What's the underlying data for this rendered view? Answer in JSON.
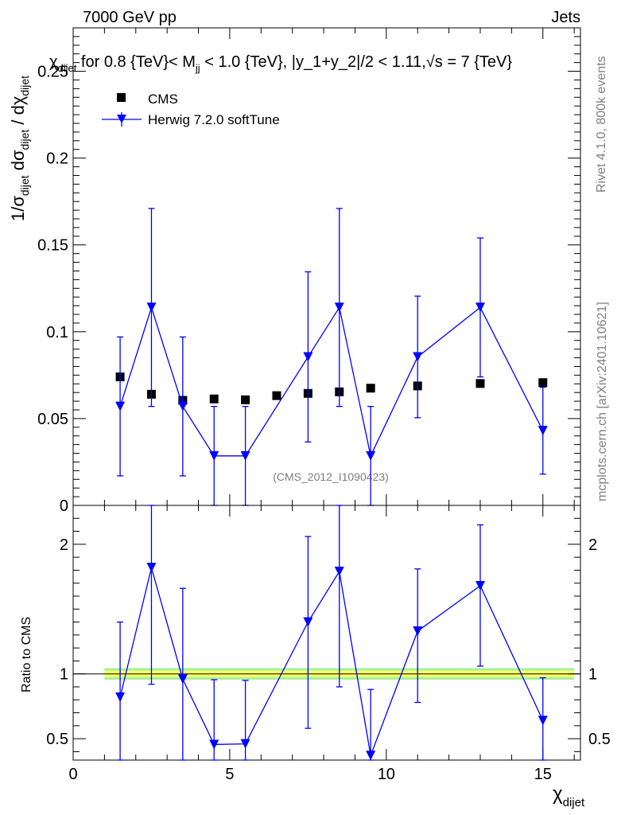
{
  "header": {
    "left": "7000 GeV pp",
    "right": "Jets"
  },
  "side_labels": {
    "rivet": "Rivet 4.1.0,  800k events",
    "mcplots": "mcplots.cern.ch [arXiv:2401.10621]"
  },
  "chart_data": {
    "type": "scatter",
    "title": "χdijet for 0.8 {TeV}< Mjj < 1.0 {TeV}, |y_1+y_2|/2 < 1.11,√s = 7 {TeV}",
    "title_parts": {
      "chi": "χ",
      "chi_sub": "dijet",
      "text1": " for 0.8 {TeV}< M",
      "m_sub": "jj",
      "text2": " < 1.0 {TeV}, |y_1+y_2|/2 < 1.11,",
      "sqrt": "√",
      "text3": "s = 7 {TeV}"
    },
    "watermark": "(CMS_2012_I1090423)",
    "xlabel": "χdijet",
    "xlabel_parts": {
      "main": "χ",
      "sub": "dijet"
    },
    "ylabel": "1/σdijet dσdijet / dχdijet",
    "ylabel_parts": {
      "p1": "1/σ",
      "s1": "dijet",
      "p2": " dσ",
      "s2": "dijet",
      "p3": " / dχ",
      "s3": "dijet"
    },
    "xlim": [
      0,
      16.2
    ],
    "ylim": [
      0,
      0.275
    ],
    "x_ticks": [
      0,
      5,
      10,
      15
    ],
    "x_tick_labels": [
      "0",
      "5",
      "10",
      "15"
    ],
    "y_ticks": [
      0,
      0.05,
      0.1,
      0.15,
      0.2,
      0.25
    ],
    "y_tick_labels": [
      "0",
      "0.05",
      "0.1",
      "0.15",
      "0.2",
      "0.25"
    ],
    "legend_position": "top-left",
    "legend": [
      "CMS",
      "Herwig 7.2.0 softTune"
    ],
    "series": [
      {
        "name": "CMS",
        "marker": "square",
        "color": "#000000",
        "x": [
          1.5,
          2.5,
          3.5,
          4.5,
          5.5,
          6.5,
          7.5,
          8.5,
          9.5,
          11,
          13,
          15
        ],
        "y": [
          0.074,
          0.064,
          0.0605,
          0.0613,
          0.0608,
          0.0632,
          0.0645,
          0.0654,
          0.0675,
          0.0688,
          0.0702,
          0.0707
        ]
      },
      {
        "name": "Herwig 7.2.0 softTune",
        "marker": "triangle-down",
        "color": "#0000ff",
        "x": [
          1.5,
          2.5,
          3.5,
          4.5,
          5.5,
          7.5,
          8.5,
          9.5,
          11,
          13,
          15
        ],
        "y": [
          0.057,
          0.114,
          0.057,
          0.0285,
          0.0285,
          0.0855,
          0.114,
          0.0285,
          0.0855,
          0.114,
          0.043
        ],
        "y_err_low": [
          0.04,
          0.057,
          0.04,
          0.0285,
          0.0285,
          0.049,
          0.057,
          0.0285,
          0.035,
          0.04,
          0.025
        ],
        "y_err_high": [
          0.04,
          0.057,
          0.04,
          0.0285,
          0.0285,
          0.049,
          0.057,
          0.0285,
          0.035,
          0.04,
          0.025
        ],
        "x_lo": [
          1,
          2,
          3,
          4,
          5,
          7,
          8,
          9,
          10,
          12,
          14
        ],
        "x_hi": [
          2,
          3,
          4,
          5,
          6,
          8,
          9,
          10,
          12,
          14,
          16
        ]
      }
    ],
    "ratio": {
      "ylabel": "Ratio to CMS",
      "ylim": [
        0.335,
        2.3
      ],
      "y_ticks": [
        0.5,
        1,
        2
      ],
      "y_tick_labels": [
        "0.5",
        "1",
        "2"
      ],
      "band_x": [
        1,
        16
      ],
      "band_inner": [
        0.975,
        1.025
      ],
      "band_outer": [
        0.955,
        1.045
      ],
      "band_colors": {
        "inner": "#ffff66",
        "outer": "#a8f0a0"
      },
      "x": [
        1.5,
        2.5,
        3.5,
        4.5,
        5.5,
        7.5,
        8.5,
        9.5,
        11,
        13,
        15
      ],
      "y": [
        0.82,
        1.82,
        0.96,
        0.455,
        0.46,
        1.4,
        1.79,
        0.37,
        1.33,
        1.68,
        0.64
      ],
      "y_err_low": [
        0.58,
        0.9,
        0.7,
        0.455,
        0.46,
        0.82,
        0.89,
        0.37,
        0.55,
        0.62,
        0.36
      ],
      "y_err_high": [
        0.58,
        0.9,
        0.7,
        0.5,
        0.49,
        0.66,
        0.89,
        0.51,
        0.48,
        0.47,
        0.33
      ]
    }
  }
}
